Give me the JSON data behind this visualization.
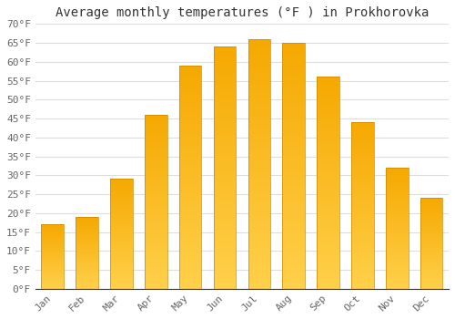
{
  "title": "Average monthly temperatures (°F ) in Prokhorovka",
  "months": [
    "Jan",
    "Feb",
    "Mar",
    "Apr",
    "May",
    "Jun",
    "Jul",
    "Aug",
    "Sep",
    "Oct",
    "Nov",
    "Dec"
  ],
  "values": [
    17,
    19,
    29,
    46,
    59,
    64,
    66,
    65,
    56,
    44,
    32,
    24
  ],
  "bar_color_bottom": "#FFD04A",
  "bar_color_top": "#F5A800",
  "ylim": [
    0,
    70
  ],
  "yticks": [
    0,
    5,
    10,
    15,
    20,
    25,
    30,
    35,
    40,
    45,
    50,
    55,
    60,
    65,
    70
  ],
  "ytick_labels": [
    "0°F",
    "5°F",
    "10°F",
    "15°F",
    "20°F",
    "25°F",
    "30°F",
    "35°F",
    "40°F",
    "45°F",
    "50°F",
    "55°F",
    "60°F",
    "65°F",
    "70°F"
  ],
  "background_color": "#ffffff",
  "grid_color": "#dddddd",
  "title_fontsize": 10,
  "tick_fontsize": 8,
  "bar_edge_color": "#cc8800",
  "bar_edge_width": 0.5
}
